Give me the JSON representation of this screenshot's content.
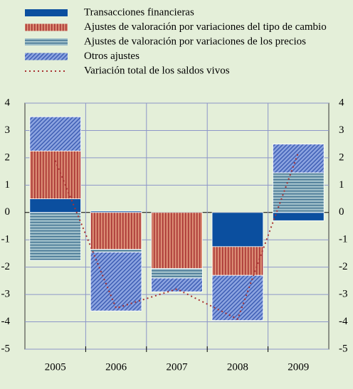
{
  "chart_data": {
    "type": "bar",
    "categories": [
      "2005",
      "2006",
      "2007",
      "2008",
      "2009"
    ],
    "series": [
      {
        "name": "Transacciones financieras",
        "color": "#0b4f9f",
        "values": [
          0.5,
          0.05,
          0,
          -1.25,
          -0.3
        ]
      },
      {
        "name": "Ajustes de valoración por variaciones del tipo de cambio",
        "color": "#d98a72",
        "values": [
          1.75,
          -1.35,
          -2.05,
          -1.05,
          0
        ]
      },
      {
        "name": "Ajustes de valoración por variaciones de los precios",
        "color": "#9dbdc8",
        "values": [
          -1.75,
          -0.1,
          -0.35,
          0,
          1.45
        ]
      },
      {
        "name": "Otros ajustes",
        "color": "#6b86d0",
        "values": [
          1.25,
          -2.15,
          -0.5,
          -1.65,
          1.05
        ]
      },
      {
        "name": "Variación total de los saldos vivos",
        "type": "line",
        "color": "#a83232",
        "values": [
          1.9,
          -3.5,
          -2.8,
          -3.9,
          2.2
        ]
      }
    ],
    "ylim": [
      -5,
      4
    ],
    "yticks": [
      -5,
      -4,
      -3,
      -2,
      -1,
      0,
      1,
      2,
      3,
      4
    ],
    "grid": true
  }
}
